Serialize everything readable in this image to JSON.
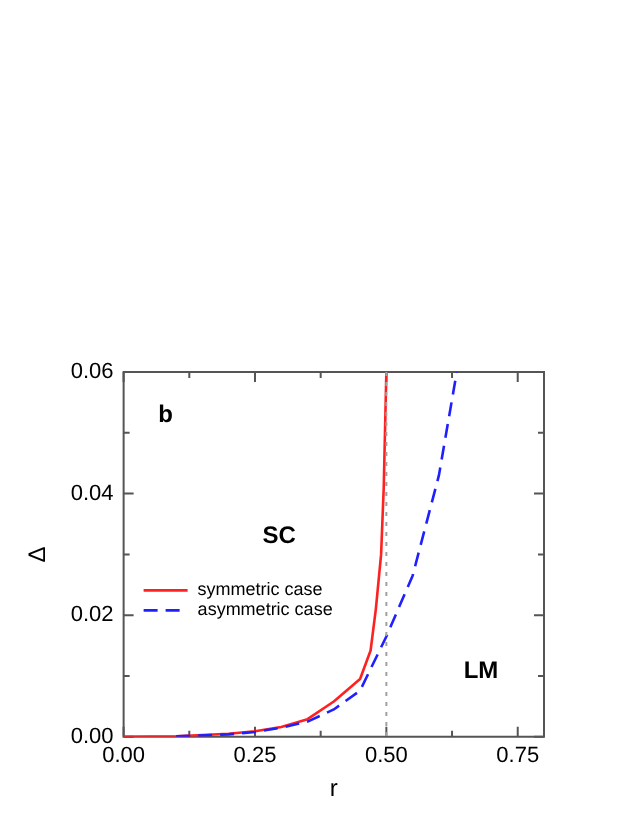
{
  "chart_data": {
    "type": "line",
    "xlabel": "r",
    "ylabel": "Δ",
    "xlim": [
      0,
      0.8
    ],
    "ylim": [
      0,
      0.06
    ],
    "xticks": [
      {
        "value": 0,
        "label": "0.00"
      },
      {
        "value": 0.125,
        "label": null
      },
      {
        "value": 0.25,
        "label": "0.25"
      },
      {
        "value": 0.375,
        "label": null
      },
      {
        "value": 0.5,
        "label": "0.50"
      },
      {
        "value": 0.625,
        "label": null
      },
      {
        "value": 0.75,
        "label": "0.75"
      }
    ],
    "yticks": [
      {
        "value": 0,
        "label": "0.00"
      },
      {
        "value": 0.01,
        "label": null
      },
      {
        "value": 0.02,
        "label": "0.02"
      },
      {
        "value": 0.03,
        "label": null
      },
      {
        "value": 0.04,
        "label": "0.04"
      },
      {
        "value": 0.05,
        "label": null
      },
      {
        "value": 0.06,
        "label": "0.06"
      }
    ],
    "grid": false,
    "legend": "center left",
    "marker": "none",
    "series": [
      {
        "name": "symmetric case",
        "color": "#ff2020",
        "line_style": "solid",
        "x": [
          0,
          0.1,
          0.2,
          0.25,
          0.3,
          0.35,
          0.4,
          0.45,
          0.47,
          0.48,
          0.49,
          0.495,
          0.5
        ],
        "values": [
          0,
          0.0001,
          0.0005,
          0.0009,
          0.0016,
          0.0029,
          0.0058,
          0.0095,
          0.0142,
          0.021,
          0.03,
          0.041,
          0.06
        ]
      },
      {
        "name": "asymmetric case",
        "color": "#2020ff",
        "line_style": "dashed",
        "x": [
          0.1,
          0.2,
          0.25,
          0.3,
          0.35,
          0.4,
          0.45,
          0.5,
          0.55,
          0.6,
          0.634
        ],
        "values": [
          0.0001,
          0.0004,
          0.0008,
          0.0015,
          0.0025,
          0.0045,
          0.0076,
          0.0165,
          0.0265,
          0.043,
          0.06
        ]
      }
    ],
    "ref_lines": [
      {
        "axis": "x",
        "value": 0.5,
        "color": "#a0a0a0",
        "line_style": "dotted"
      }
    ],
    "annotations": [
      "b",
      "SC",
      "LM"
    ]
  }
}
